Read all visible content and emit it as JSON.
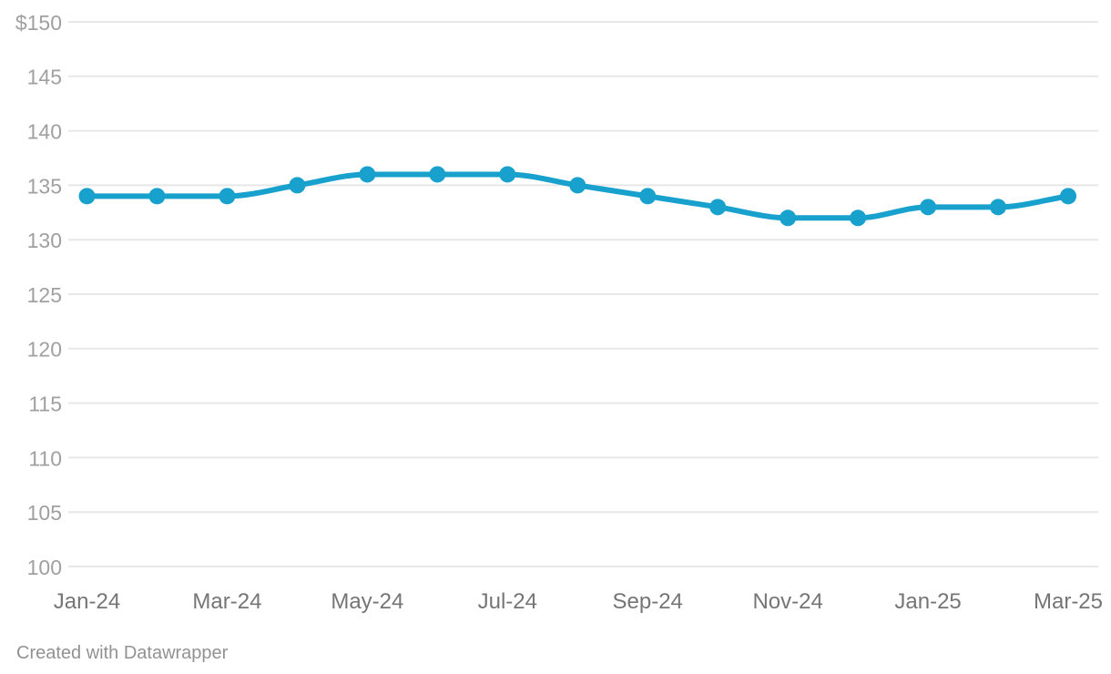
{
  "chart_data": {
    "type": "line",
    "title": "",
    "xlabel": "",
    "ylabel": "",
    "x": [
      "Jan-24",
      "Feb-24",
      "Mar-24",
      "Apr-24",
      "May-24",
      "Jun-24",
      "Jul-24",
      "Aug-24",
      "Sep-24",
      "Oct-24",
      "Nov-24",
      "Dec-24",
      "Jan-25",
      "Feb-25",
      "Mar-25"
    ],
    "values": [
      134,
      134,
      134,
      135,
      136,
      136,
      136,
      135,
      134,
      133,
      132,
      132,
      133,
      133,
      134
    ],
    "ylim": [
      100,
      150
    ],
    "y_ticks": [
      150,
      145,
      140,
      135,
      130,
      125,
      120,
      115,
      110,
      105,
      100
    ],
    "y_tick_labels": [
      "$150",
      "145",
      "140",
      "135",
      "130",
      "125",
      "120",
      "115",
      "110",
      "105",
      "100"
    ],
    "x_tick_indices": [
      0,
      2,
      4,
      6,
      8,
      10,
      12,
      14
    ],
    "x_tick_labels": [
      "Jan-24",
      "Mar-24",
      "May-24",
      "Jul-24",
      "Sep-24",
      "Nov-24",
      "Jan-25",
      "Mar-25"
    ],
    "grid": true,
    "legend": "none",
    "interpolation": "monotone",
    "line_color": "#18a1cd",
    "point_color": "#18a1cd",
    "grid_color": "#e7e7e7",
    "y_label_color": "#a0a0a0",
    "x_label_color": "#757575"
  },
  "footer": {
    "attribution": "Created with Datawrapper"
  }
}
